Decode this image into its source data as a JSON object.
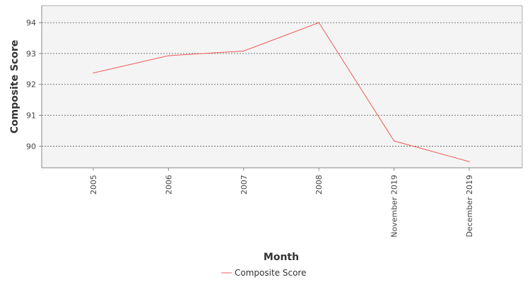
{
  "chart_data": {
    "type": "line",
    "title": "",
    "xlabel": "Month",
    "ylabel": "Composite Score",
    "categories": [
      "2005",
      "2006",
      "2007",
      "2008",
      "November 2019",
      "December 2019"
    ],
    "series": [
      {
        "name": "Composite Score",
        "values": [
          92.37,
          92.93,
          93.08,
          94.0,
          90.17,
          89.5
        ],
        "color": "#f05a5a"
      }
    ],
    "yticks": [
      "90",
      "91",
      "92",
      "93",
      "94"
    ],
    "ylim": [
      89.3,
      94.55
    ],
    "grid": true,
    "legend_position": "bottom-center",
    "plot_background": "#f4f4f4"
  }
}
